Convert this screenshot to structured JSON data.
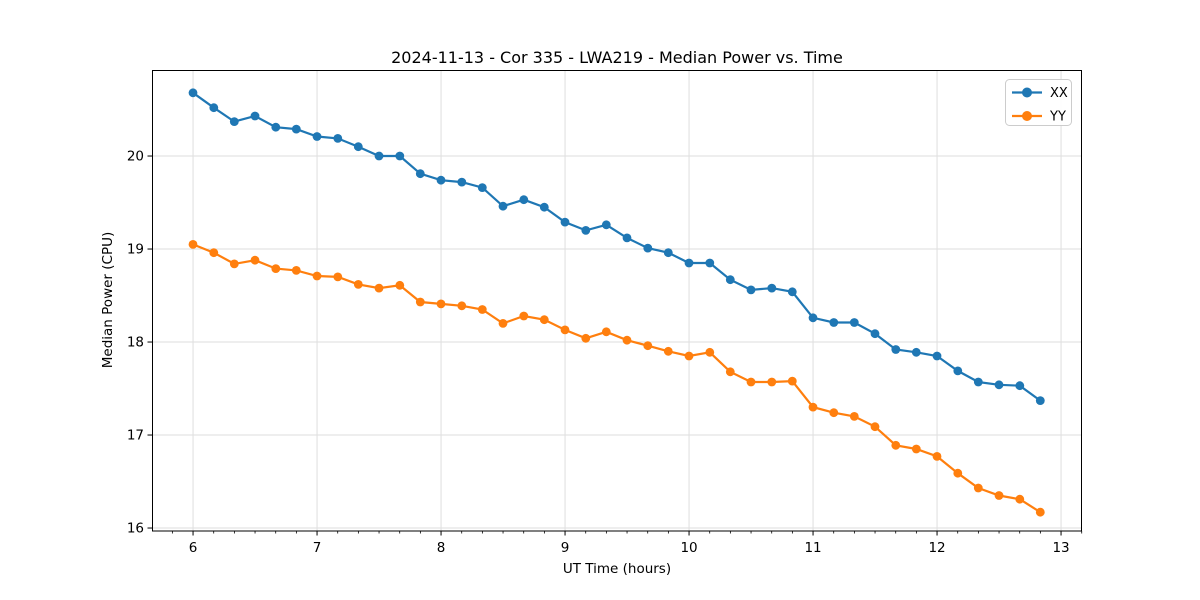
{
  "chart_data": {
    "type": "line",
    "title": "2024-11-13 - Cor 335 - LWA219 - Median Power vs. Time",
    "xlabel": "UT Time (hours)",
    "ylabel": "Median Power (CPU)",
    "xlim": [
      5.669,
      13.169
    ],
    "ylim": [
      15.968,
      20.925
    ],
    "xticks": [
      6,
      7,
      8,
      9,
      10,
      11,
      12,
      13
    ],
    "yticks": [
      16,
      17,
      18,
      19,
      20
    ],
    "x_minor_tick_step": 0.1667,
    "grid": true,
    "legend_position": "upper right",
    "x": [
      6.0,
      6.167,
      6.333,
      6.5,
      6.667,
      6.833,
      7.0,
      7.167,
      7.333,
      7.5,
      7.667,
      7.833,
      8.0,
      8.167,
      8.333,
      8.5,
      8.667,
      8.833,
      9.0,
      9.167,
      9.333,
      9.5,
      9.667,
      9.833,
      10.0,
      10.167,
      10.333,
      10.5,
      10.667,
      10.833,
      11.0,
      11.167,
      11.333,
      11.5,
      11.667,
      11.833,
      12.0,
      12.167,
      12.333,
      12.5,
      12.667,
      12.833
    ],
    "series": [
      {
        "name": "XX",
        "color": "#1f77b4",
        "values": [
          20.68,
          20.52,
          20.37,
          20.43,
          20.31,
          20.29,
          20.21,
          20.19,
          20.1,
          20.0,
          20.0,
          19.81,
          19.74,
          19.72,
          19.66,
          19.46,
          19.53,
          19.45,
          19.29,
          19.2,
          19.26,
          19.12,
          19.01,
          18.96,
          18.85,
          18.85,
          18.67,
          18.56,
          18.58,
          18.54,
          18.26,
          18.21,
          18.21,
          18.09,
          17.92,
          17.89,
          17.85,
          17.69,
          17.57,
          17.54,
          17.53,
          17.37
        ]
      },
      {
        "name": "YY",
        "color": "#ff7f0e",
        "values": [
          19.05,
          18.96,
          18.84,
          18.88,
          18.79,
          18.77,
          18.71,
          18.7,
          18.62,
          18.58,
          18.61,
          18.43,
          18.41,
          18.39,
          18.35,
          18.2,
          18.28,
          18.24,
          18.13,
          18.04,
          18.11,
          18.02,
          17.96,
          17.9,
          17.85,
          17.89,
          17.68,
          17.57,
          17.57,
          17.58,
          17.3,
          17.24,
          17.2,
          17.09,
          16.89,
          16.85,
          16.77,
          16.59,
          16.43,
          16.35,
          16.31,
          16.17
        ]
      }
    ]
  }
}
